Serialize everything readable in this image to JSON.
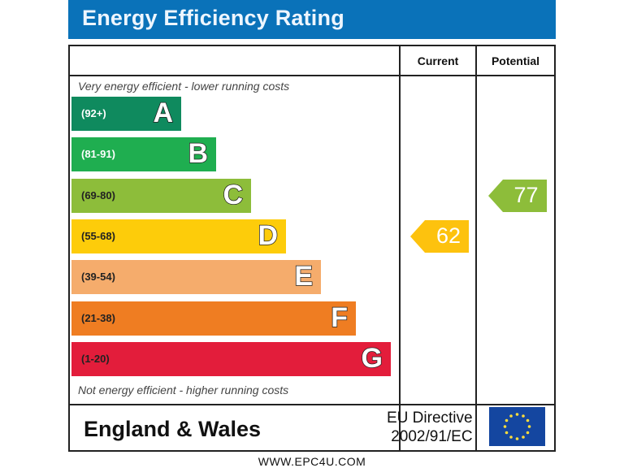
{
  "header": {
    "title": "Energy Efficiency Rating"
  },
  "columns": {
    "current": "Current",
    "potential": "Potential"
  },
  "captions": {
    "top": "Very energy efficient - lower running costs",
    "bottom": "Not energy efficient - higher running costs"
  },
  "chart_data": {
    "type": "bar",
    "title": "Energy Efficiency Rating",
    "categories": [
      "A",
      "B",
      "C",
      "D",
      "E",
      "F",
      "G"
    ],
    "bands": [
      {
        "letter": "A",
        "range": "(92+)",
        "color": "#0f8a5e",
        "text_color": "#ffffff"
      },
      {
        "letter": "B",
        "range": "(81-91)",
        "color": "#1fae50",
        "text_color": "#ffffff"
      },
      {
        "letter": "C",
        "range": "(69-80)",
        "color": "#8dbd3a",
        "text_color": "#222222"
      },
      {
        "letter": "D",
        "range": "(55-68)",
        "color": "#fdcc0a",
        "text_color": "#222222"
      },
      {
        "letter": "E",
        "range": "(39-54)",
        "color": "#f5ac6c",
        "text_color": "#222222"
      },
      {
        "letter": "F",
        "range": "(21-38)",
        "color": "#ef7d22",
        "text_color": "#222222"
      },
      {
        "letter": "G",
        "range": "(1-20)",
        "color": "#e31d3b",
        "text_color": "#222222"
      }
    ],
    "current": {
      "value": 62,
      "band": "D",
      "color": "#fdc20e"
    },
    "potential": {
      "value": 77,
      "band": "C",
      "color": "#8dbd3a"
    }
  },
  "footer": {
    "region": "England & Wales",
    "directive_line1": "EU Directive",
    "directive_line2": "2002/91/EC",
    "flag": "eu-flag-icon"
  },
  "website": "WWW.EPC4U.COM"
}
